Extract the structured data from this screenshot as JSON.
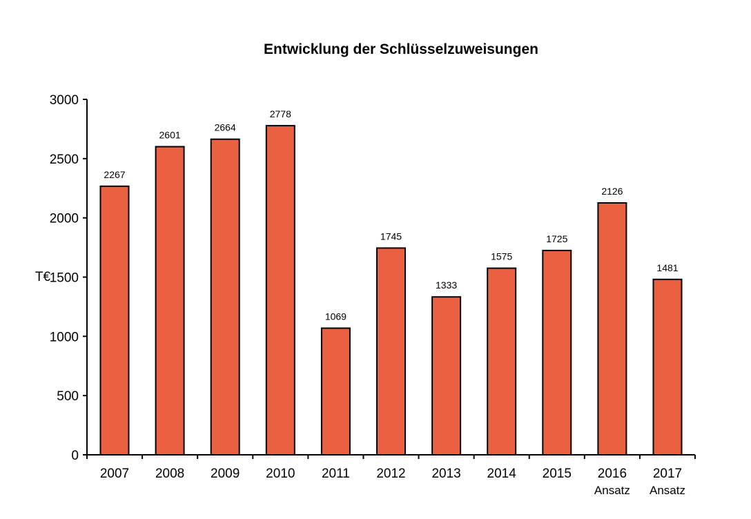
{
  "chart_data": {
    "type": "bar",
    "title": "Entwicklung der Schlüsselzuweisungen",
    "ylabel": "T€",
    "xlabel": "",
    "ylim": [
      0,
      3000
    ],
    "yticks": [
      0,
      500,
      1000,
      1500,
      2000,
      2500,
      3000
    ],
    "categories": [
      "2007",
      "2008",
      "2009",
      "2010",
      "2011",
      "2012",
      "2013",
      "2014",
      "2015",
      "2016",
      "2017"
    ],
    "category_sublabels": [
      "",
      "",
      "",
      "",
      "",
      "",
      "",
      "",
      "",
      "Ansatz",
      "Ansatz"
    ],
    "values": [
      2267,
      2601,
      2664,
      2778,
      1069,
      1745,
      1333,
      1575,
      1725,
      2126,
      1481
    ],
    "data_labels": true,
    "grid": false,
    "legend": "none",
    "bar_color": "#ea6141",
    "bar_edge_color": "#000000"
  }
}
